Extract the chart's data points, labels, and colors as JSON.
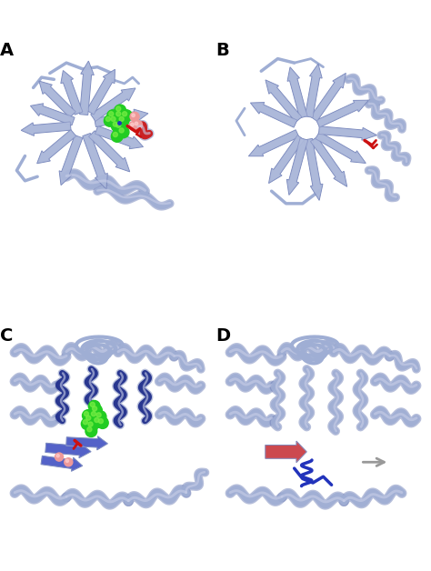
{
  "fig_width": 4.74,
  "fig_height": 6.28,
  "dpi": 100,
  "bg_color": "#ffffff",
  "panel_labels": [
    "A",
    "B",
    "C",
    "D"
  ],
  "label_fontsize": 14,
  "label_fontweight": "bold",
  "protein_color": "#9faed4",
  "protein_color_dark": "#7080b8",
  "protein_color_light": "#c8cee8",
  "green_color": "#22cc22",
  "red_color": "#cc1111",
  "pink_color": "#ee9999",
  "blue_color": "#2233bb",
  "blue_dark": "#1a2888",
  "gray_color": "#999999"
}
